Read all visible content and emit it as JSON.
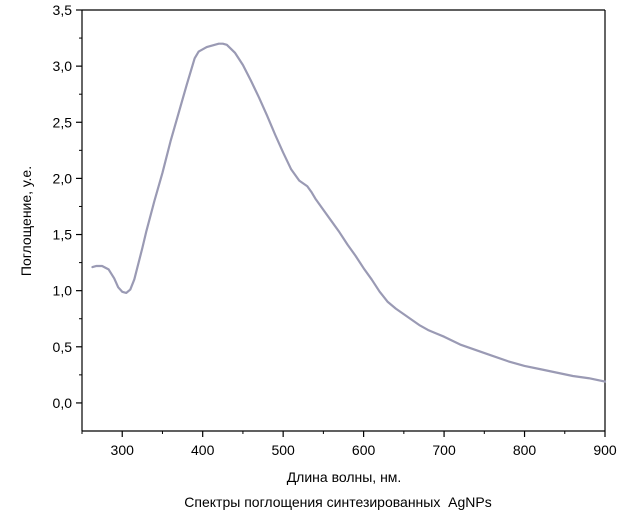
{
  "chart_data": {
    "type": "line",
    "title": "",
    "caption": "Спектры поглощения синтезированных  AgNPs",
    "xlabel": "Длина волны, нм.",
    "ylabel": "Поглощение, у.е.",
    "xlim": [
      250,
      900
    ],
    "ylim": [
      -0.25,
      3.5
    ],
    "xticks": [
      300,
      400,
      500,
      600,
      700,
      800,
      900
    ],
    "yticks": [
      0.0,
      0.5,
      1.0,
      1.5,
      2.0,
      2.5,
      3.0,
      3.5
    ],
    "xtick_labels": [
      "300",
      "400",
      "500",
      "600",
      "700",
      "800",
      "900"
    ],
    "ytick_labels": [
      "0,0",
      "0,5",
      "1,0",
      "1,5",
      "2,0",
      "2,5",
      "3,0",
      "3,5"
    ],
    "grid": false,
    "legend": "none",
    "line_color": "#9a9ab4",
    "series": [
      {
        "x": [
          263,
          268,
          275,
          283,
          290,
          295,
          300,
          305,
          310,
          315,
          320,
          325,
          330,
          340,
          350,
          360,
          370,
          380,
          390,
          395,
          400,
          405,
          410,
          415,
          420,
          425,
          430,
          440,
          450,
          460,
          470,
          480,
          490,
          500,
          510,
          520,
          530,
          535,
          540,
          550,
          560,
          570,
          580,
          590,
          600,
          610,
          620,
          630,
          640,
          650,
          660,
          670,
          680,
          690,
          700,
          720,
          740,
          760,
          780,
          800,
          820,
          840,
          860,
          880,
          900
        ],
        "y": [
          1.21,
          1.22,
          1.22,
          1.19,
          1.11,
          1.03,
          0.99,
          0.98,
          1.01,
          1.1,
          1.24,
          1.38,
          1.53,
          1.8,
          2.05,
          2.33,
          2.58,
          2.83,
          3.07,
          3.13,
          3.15,
          3.17,
          3.18,
          3.19,
          3.2,
          3.2,
          3.19,
          3.12,
          3.01,
          2.87,
          2.72,
          2.56,
          2.39,
          2.23,
          2.08,
          1.98,
          1.93,
          1.88,
          1.82,
          1.72,
          1.62,
          1.52,
          1.41,
          1.31,
          1.2,
          1.1,
          0.99,
          0.9,
          0.84,
          0.79,
          0.74,
          0.69,
          0.65,
          0.62,
          0.59,
          0.52,
          0.47,
          0.42,
          0.37,
          0.33,
          0.3,
          0.27,
          0.24,
          0.22,
          0.19
        ]
      }
    ]
  }
}
